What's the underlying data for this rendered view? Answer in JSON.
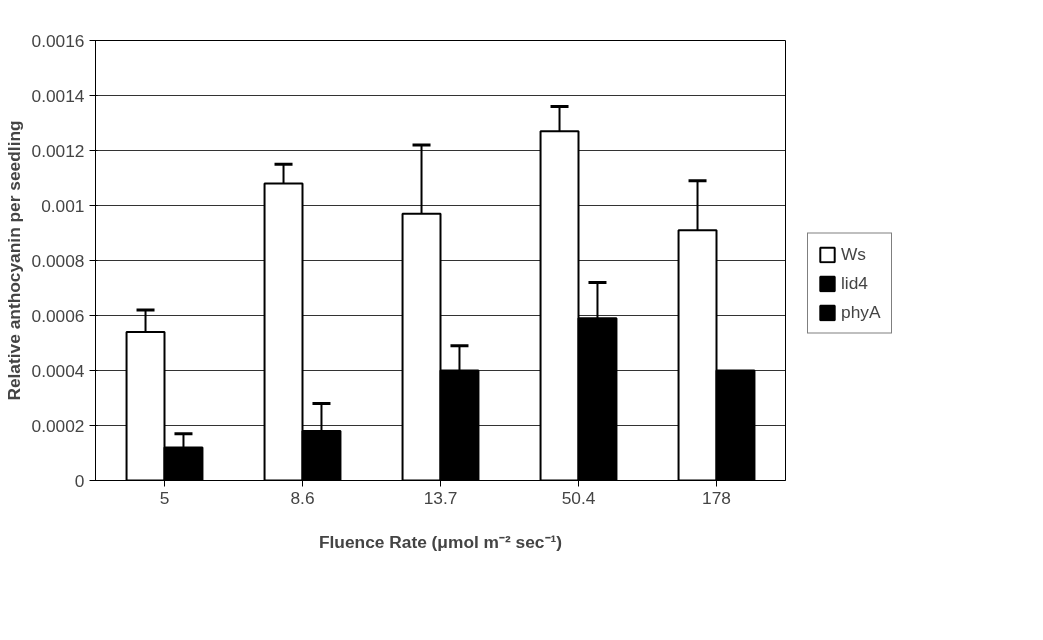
{
  "chart_data": {
    "type": "bar",
    "xlabel": "Fluence Rate (μmol m⁻² sec⁻¹)",
    "ylabel": "Relative anthocyanin per seedling",
    "categories": [
      "5",
      "8.6",
      "13.7",
      "50.4",
      "178"
    ],
    "series": [
      {
        "name": "Ws",
        "color": "#ffffff",
        "values": [
          0.00054,
          0.00108,
          0.00097,
          0.00127,
          0.00091
        ],
        "errors": [
          8e-05,
          7e-05,
          0.00025,
          9e-05,
          0.00018
        ]
      },
      {
        "name": "lid4",
        "color": "#000000",
        "values": [
          null,
          null,
          null,
          null,
          null
        ]
      },
      {
        "name": "phyA",
        "color": "#000000",
        "values": [
          0.00012,
          0.00018,
          0.0004,
          0.00059,
          0.0004
        ],
        "errors": [
          5e-05,
          0.0001,
          9e-05,
          0.00013,
          null
        ]
      }
    ],
    "ylim": [
      0,
      0.0016
    ],
    "yticks": [
      0,
      0.0002,
      0.0004,
      0.0006,
      0.0008,
      0.001,
      0.0012,
      0.0014,
      0.0016
    ],
    "grid": "y",
    "legend": "right"
  }
}
